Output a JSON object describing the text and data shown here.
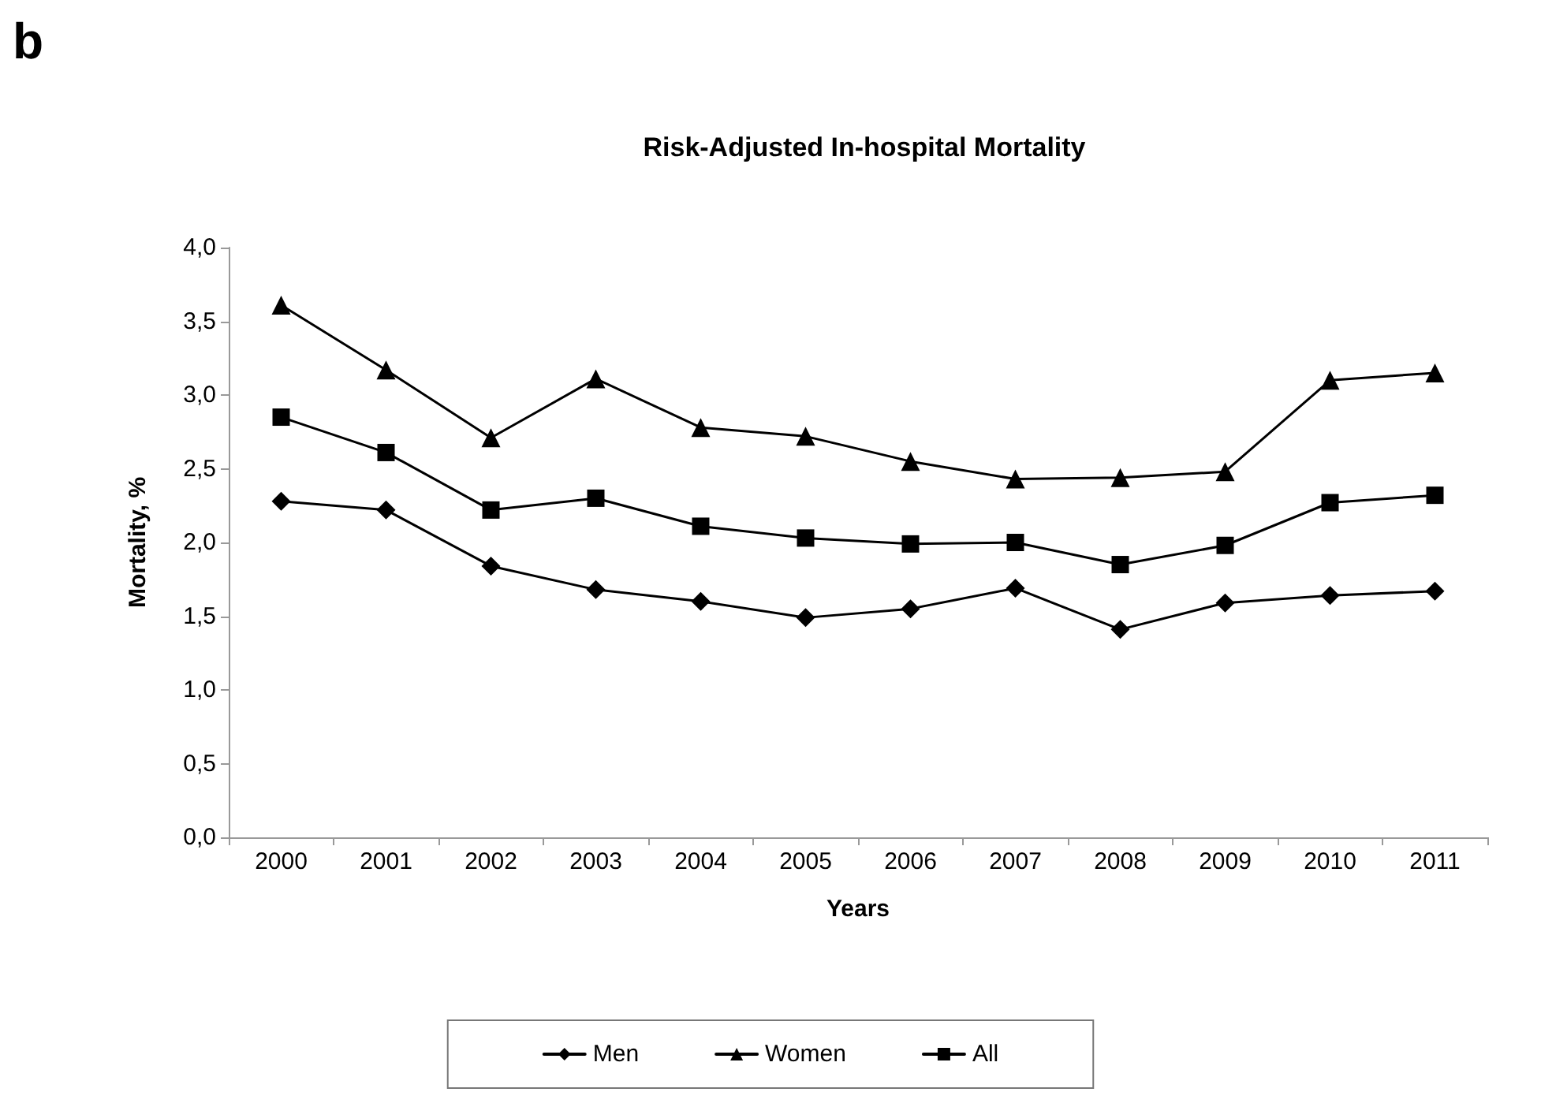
{
  "chart_data": {
    "type": "line",
    "title": "Risk-Adjusted In-hospital Mortality",
    "xlabel": "Years",
    "ylabel": "Mortality, %",
    "annotations": [
      "b"
    ],
    "categories": [
      "2000",
      "2001",
      "2002",
      "2003",
      "2004",
      "2005",
      "2006",
      "2007",
      "2008",
      "2009",
      "2010",
      "2011"
    ],
    "series": [
      {
        "name": "Men",
        "color": "#000000",
        "marker": "diamond",
        "values": [
          2.28,
          2.22,
          1.84,
          1.68,
          1.6,
          1.49,
          1.55,
          1.69,
          1.41,
          1.59,
          1.64,
          1.67
        ]
      },
      {
        "name": "Women",
        "color": "#000000",
        "marker": "triangle",
        "values": [
          3.61,
          3.17,
          2.71,
          3.11,
          2.78,
          2.72,
          2.55,
          2.43,
          2.44,
          2.48,
          3.1,
          3.15
        ]
      },
      {
        "name": "All",
        "color": "#000000",
        "marker": "square",
        "values": [
          2.85,
          2.61,
          2.22,
          2.3,
          2.11,
          2.03,
          1.99,
          2.0,
          1.85,
          1.98,
          2.27,
          2.32
        ]
      }
    ],
    "ylim": [
      0,
      4
    ],
    "yticks": [
      {
        "value": 0,
        "label": "0,0"
      },
      {
        "value": 0.5,
        "label": "0,5"
      },
      {
        "value": 1,
        "label": "1,0"
      },
      {
        "value": 1.5,
        "label": "1,5"
      },
      {
        "value": 2,
        "label": "2,0"
      },
      {
        "value": 2.5,
        "label": "2,5"
      },
      {
        "value": 3,
        "label": "3,0"
      },
      {
        "value": 3.5,
        "label": "3,5"
      },
      {
        "value": 4,
        "label": "4,0"
      }
    ],
    "grid": false,
    "legend": "bottom",
    "line_style": "solid"
  }
}
